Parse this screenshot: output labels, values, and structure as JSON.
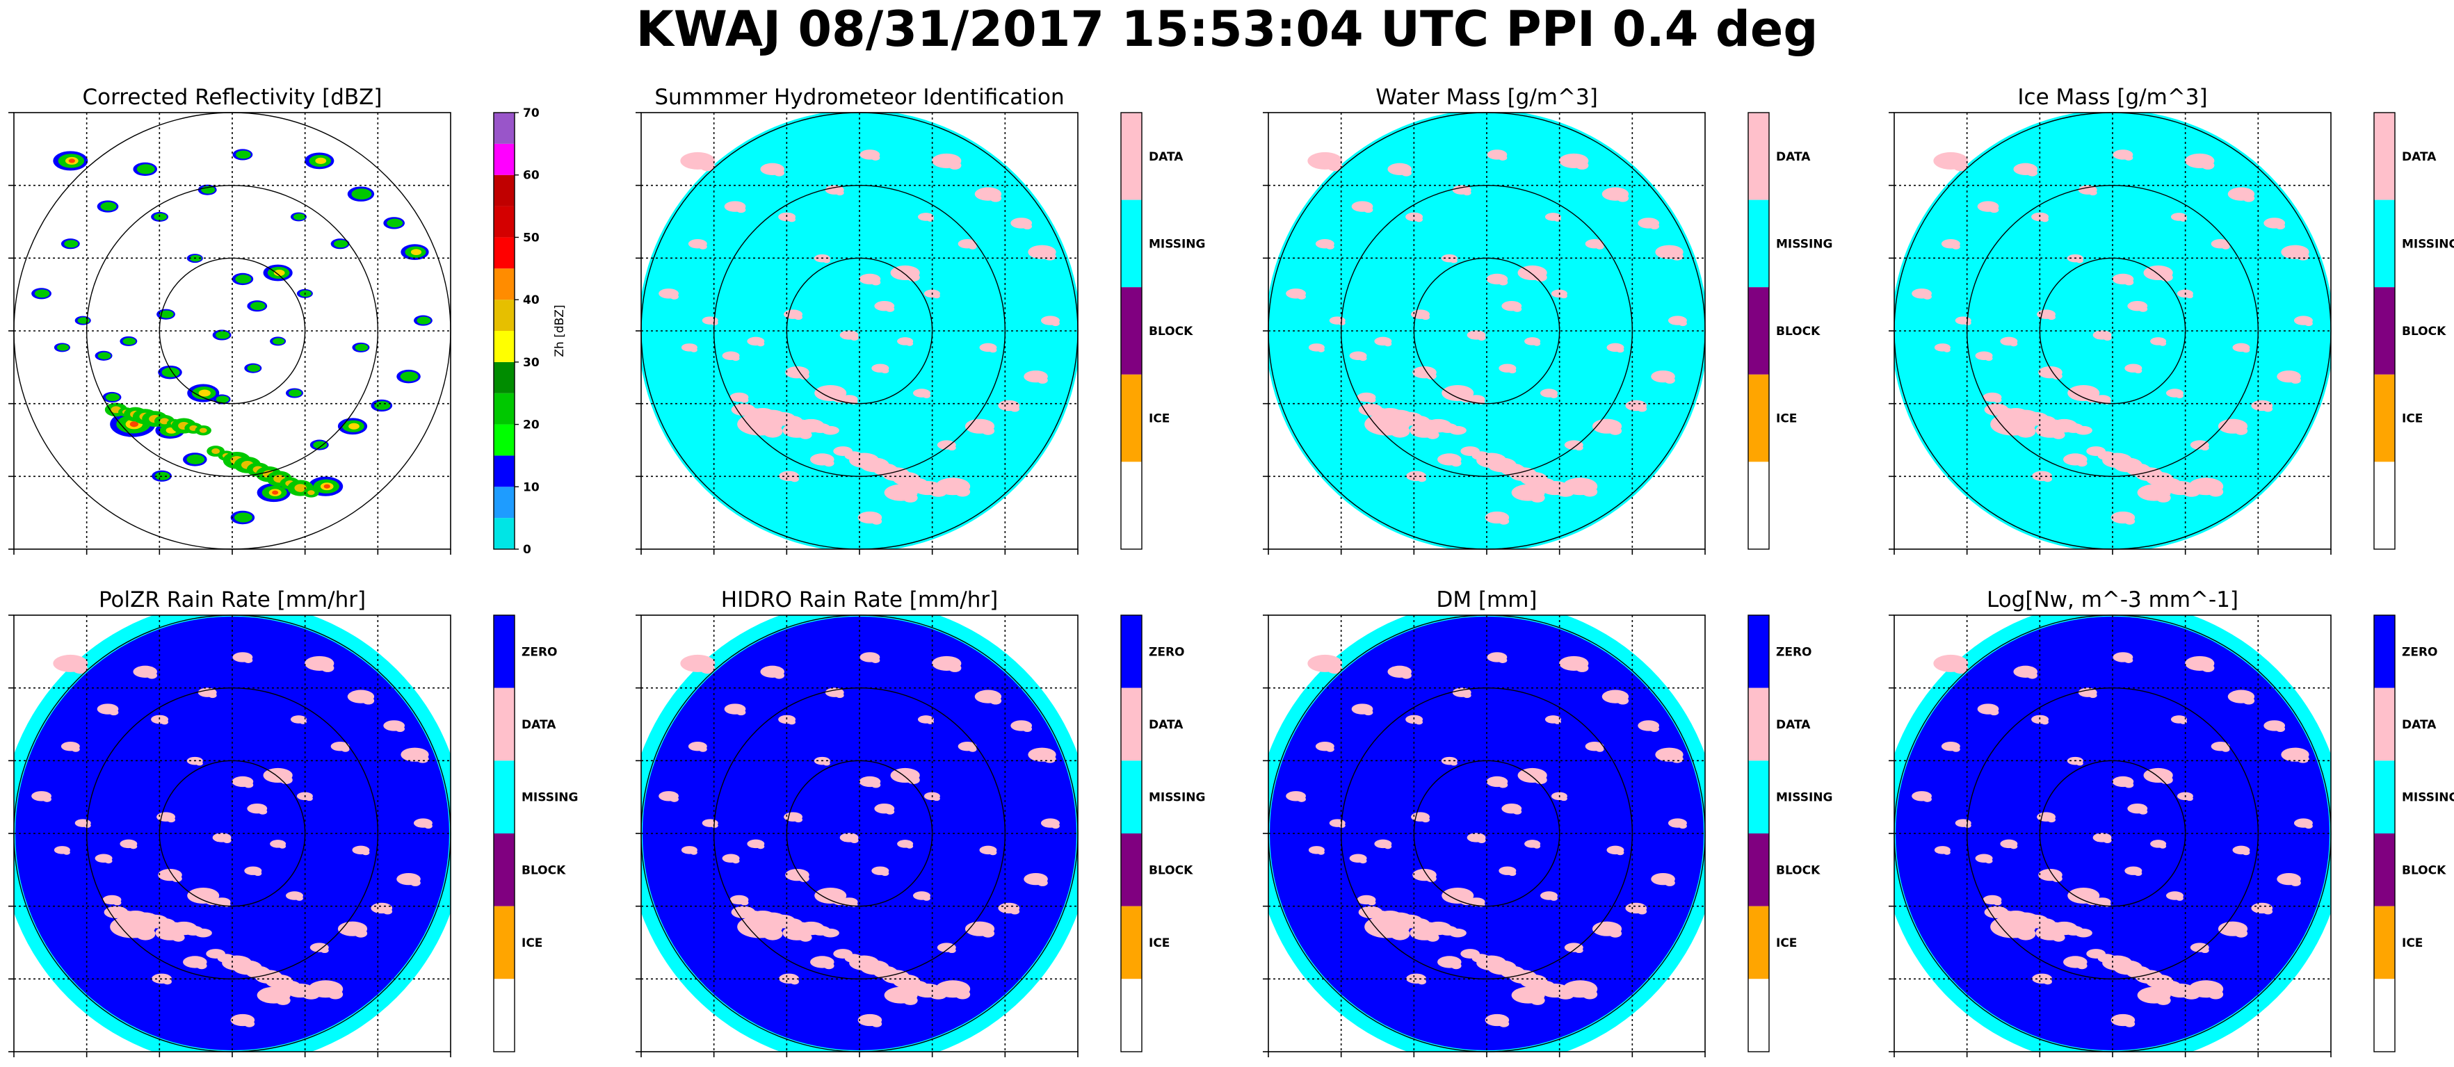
{
  "figure": {
    "title": "KWAJ 08/31/2017 15:53:04 UTC PPI 0.4 deg"
  },
  "colors": {
    "background": "#ffffff",
    "cat_data": "#ffc0cb",
    "cat_missing": "#00ffff",
    "cat_block": "#800080",
    "cat_ice": "#ffa500",
    "cat_zero": "#0000ff",
    "cat_white": "#ffffff",
    "grid": "#000000"
  },
  "panels": [
    {
      "title": "Corrected Reflectivity [dBZ]",
      "kind": "reflectivity"
    },
    {
      "title": "Summmer Hydrometeor Identification",
      "kind": "cat4"
    },
    {
      "title": "Water Mass [g/m^3]",
      "kind": "cat4"
    },
    {
      "title": "Ice Mass [g/m^3]",
      "kind": "cat4"
    },
    {
      "title": "PolZR Rain Rate [mm/hr]",
      "kind": "cat5"
    },
    {
      "title": "HIDRO Rain Rate [mm/hr]",
      "kind": "cat5"
    },
    {
      "title": "DM [mm]",
      "kind": "cat5"
    },
    {
      "title": "Log[Nw, m^-3 mm^-1]",
      "kind": "cat5"
    }
  ],
  "colorbars": {
    "reflectivity": {
      "label": "Zh [dBZ]",
      "ticks": [
        "0",
        "10",
        "20",
        "30",
        "40",
        "50",
        "60",
        "70"
      ],
      "colors": [
        "#00e5e5",
        "#1e9cff",
        "#0000ff",
        "#00ff00",
        "#00c800",
        "#008c00",
        "#ffff00",
        "#e6bf00",
        "#ff8c00",
        "#ff0000",
        "#d40000",
        "#c00000",
        "#ff00ff",
        "#9955c9"
      ]
    },
    "cat4": {
      "labels": [
        "DATA",
        "MISSING",
        "BLOCK",
        "ICE"
      ]
    },
    "cat5": {
      "labels": [
        "ZERO",
        "DATA",
        "MISSING",
        "BLOCK",
        "ICE"
      ]
    }
  },
  "chart_data": {
    "type": "ppi",
    "radar": "KWAJ",
    "datetime_utc": "08/31/2017 15:53:04",
    "elevation_deg": 0.4,
    "range_rings": 3,
    "grid": true,
    "echo_cells": [
      [
        -0.78,
        -0.82,
        2.6
      ],
      [
        -0.42,
        -0.78,
        1.8
      ],
      [
        0.05,
        -0.85,
        1.5
      ],
      [
        0.42,
        -0.82,
        2.2
      ],
      [
        0.62,
        -0.66,
        2.0
      ],
      [
        0.78,
        -0.52,
        1.6
      ],
      [
        0.88,
        -0.38,
        2.1
      ],
      [
        0.92,
        -0.05,
        1.4
      ],
      [
        0.85,
        0.22,
        1.8
      ],
      [
        0.72,
        0.36,
        1.6
      ],
      [
        -0.92,
        -0.18,
        1.5
      ],
      [
        -0.78,
        -0.42,
        1.4
      ],
      [
        -0.6,
        -0.6,
        1.6
      ],
      [
        -0.35,
        -0.55,
        1.3
      ],
      [
        -0.12,
        -0.68,
        1.4
      ],
      [
        0.32,
        -0.55,
        1.2
      ],
      [
        0.52,
        -0.42,
        1.4
      ],
      [
        0.22,
        -0.28,
        2.2
      ],
      [
        0.05,
        -0.25,
        1.6
      ],
      [
        0.12,
        -0.12,
        1.5
      ],
      [
        -0.05,
        0.02,
        1.4
      ],
      [
        0.22,
        0.05,
        1.2
      ],
      [
        0.1,
        0.18,
        1.3
      ],
      [
        -0.32,
        -0.08,
        1.4
      ],
      [
        -0.5,
        0.05,
        1.3
      ],
      [
        -0.3,
        0.2,
        1.8
      ],
      [
        -0.62,
        0.12,
        1.3
      ],
      [
        -0.72,
        -0.05,
        1.2
      ],
      [
        -0.58,
        0.32,
        1.4
      ],
      [
        -0.48,
        0.45,
        3.4
      ],
      [
        -0.3,
        0.48,
        2.2
      ],
      [
        -0.14,
        0.3,
        2.4
      ],
      [
        -0.05,
        0.33,
        1.3
      ],
      [
        0.3,
        0.3,
        1.3
      ],
      [
        0.58,
        0.46,
        2.2
      ],
      [
        -0.18,
        0.62,
        1.8
      ],
      [
        0.2,
        0.78,
        2.5
      ],
      [
        0.45,
        0.75,
        2.6
      ],
      [
        0.05,
        0.9,
        1.8
      ],
      [
        -0.34,
        0.7,
        1.5
      ],
      [
        0.42,
        0.55,
        1.4
      ],
      [
        0.62,
        0.08,
        1.3
      ],
      [
        -0.82,
        0.08,
        1.2
      ],
      [
        -0.18,
        -0.35,
        1.2
      ],
      [
        0.35,
        -0.18,
        1.2
      ]
    ],
    "rain_streaks": [
      {
        "from": [
          -0.56,
          0.38
        ],
        "to": [
          -0.14,
          0.48
        ],
        "width": 2.2
      },
      {
        "from": [
          -0.08,
          0.58
        ],
        "to": [
          0.38,
          0.78
        ],
        "width": 2.4
      }
    ]
  }
}
